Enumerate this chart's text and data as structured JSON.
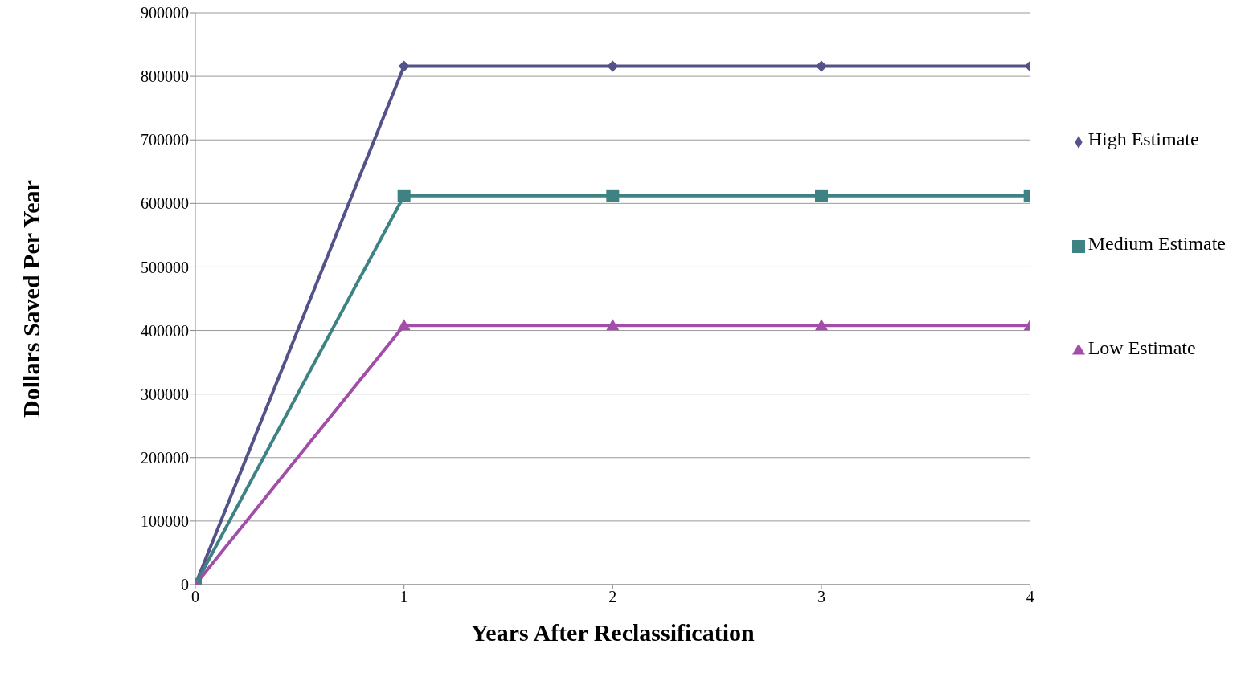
{
  "chart_data": {
    "type": "line",
    "xlabel": "Years After Reclassification",
    "ylabel": "Dollars Saved Per Year",
    "x": [
      0,
      1,
      2,
      3,
      4
    ],
    "series": [
      {
        "name": "High Estimate",
        "color": "#535289",
        "marker": "diamond",
        "values": [
          0,
          816000,
          816000,
          816000,
          816000
        ]
      },
      {
        "name": "Medium Estimate",
        "color": "#3e8283",
        "marker": "square",
        "values": [
          0,
          612000,
          612000,
          612000,
          612000
        ]
      },
      {
        "name": "Low Estimate",
        "color": "#a24ea8",
        "marker": "triangle",
        "values": [
          0,
          408000,
          408000,
          408000,
          408000
        ]
      }
    ],
    "xlim": [
      0,
      4
    ],
    "xticks": [
      0,
      1,
      2,
      3,
      4
    ],
    "ylim": [
      0,
      900000
    ],
    "yticks": [
      0,
      100000,
      200000,
      300000,
      400000,
      500000,
      600000,
      700000,
      800000,
      900000
    ],
    "grid": "y",
    "legend": "right",
    "line_style": "solid"
  }
}
